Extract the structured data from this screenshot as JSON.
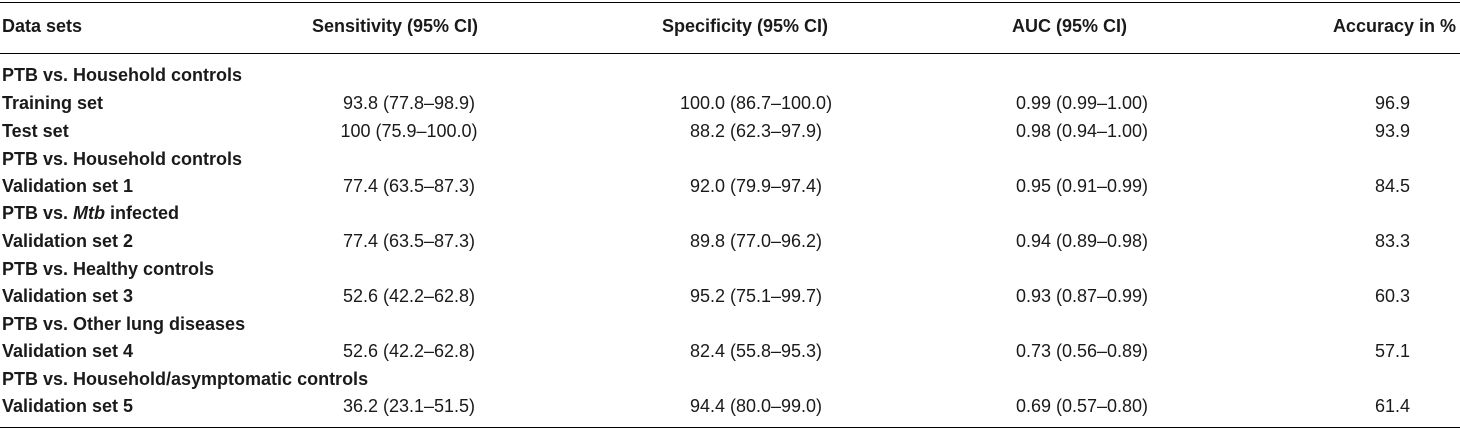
{
  "table": {
    "headers": [
      "Data sets",
      "Sensitivity (95% CI)",
      "Specificity (95% CI)",
      "AUC (95% CI)",
      "Accuracy in %"
    ],
    "groups": [
      {
        "label": "PTB vs. Household controls",
        "rows": [
          {
            "name": "Training set",
            "sensitivity": "93.8 (77.8–98.9)",
            "specificity": "100.0 (86.7–100.0)",
            "auc": "0.99 (0.99–1.00)",
            "accuracy": "96.9"
          },
          {
            "name": "Test set",
            "sensitivity": "100 (75.9–100.0)",
            "specificity": "88.2 (62.3–97.9)",
            "auc": "0.98 (0.94–1.00)",
            "accuracy": "93.9"
          }
        ]
      },
      {
        "label": "PTB vs. Household controls",
        "rows": [
          {
            "name": "Validation set 1",
            "sensitivity": "77.4 (63.5–87.3)",
            "specificity": "92.0 (79.9–97.4)",
            "auc": "0.95 (0.91–0.99)",
            "accuracy": "84.5"
          }
        ]
      },
      {
        "label_prefix": "PTB vs. ",
        "label_italic": "Mtb",
        "label_suffix": " infected",
        "rows": [
          {
            "name": "Validation set 2",
            "sensitivity": "77.4 (63.5–87.3)",
            "specificity": "89.8 (77.0–96.2)",
            "auc": "0.94 (0.89–0.98)",
            "accuracy": "83.3"
          }
        ]
      },
      {
        "label": "PTB vs. Healthy controls",
        "rows": [
          {
            "name": "Validation set 3",
            "sensitivity": "52.6 (42.2–62.8)",
            "specificity": "95.2 (75.1–99.7)",
            "auc": "0.93 (0.87–0.99)",
            "accuracy": "60.3"
          }
        ]
      },
      {
        "label": "PTB vs. Other lung diseases",
        "rows": [
          {
            "name": "Validation set 4",
            "sensitivity": "52.6 (42.2–62.8)",
            "specificity": "82.4 (55.8–95.3)",
            "auc": "0.73 (0.56–0.89)",
            "accuracy": "57.1"
          }
        ]
      },
      {
        "label": "PTB vs. Household/asymptomatic controls",
        "rows": [
          {
            "name": "Validation set 5",
            "sensitivity": "36.2 (23.1–51.5)",
            "specificity": "94.4 (80.0–99.0)",
            "auc": "0.69 (0.57–0.80)",
            "accuracy": "61.4"
          }
        ]
      }
    ]
  }
}
